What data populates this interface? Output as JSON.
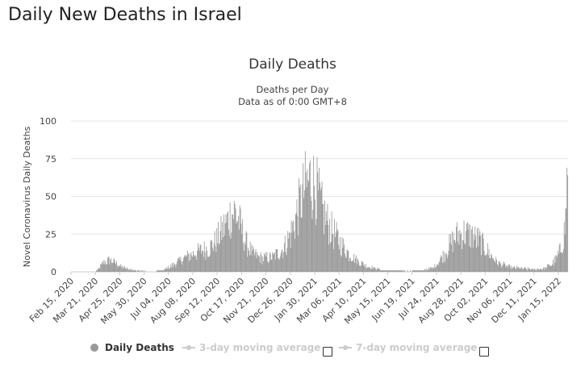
{
  "page": {
    "heading": "Daily New Deaths in Israel"
  },
  "chart_data": {
    "type": "bar",
    "title": "Daily Deaths",
    "subtitle_lines": [
      "Deaths per Day",
      "Data as of 0:00 GMT+8"
    ],
    "ylabel": "Novel Coronavirus Daily Deaths",
    "ylim": [
      0,
      100
    ],
    "yticks": [
      0,
      25,
      50,
      75,
      100
    ],
    "x_range": [
      "2020-02-15",
      "2022-01-28"
    ],
    "x_tick_labels": [
      "Feb 15, 2020",
      "Mar 21, 2020",
      "Apr 25, 2020",
      "May 30, 2020",
      "Jul 04, 2020",
      "Aug 08, 2020",
      "Sep 12, 2020",
      "Oct 17, 2020",
      "Nov 21, 2020",
      "Dec 26, 2020",
      "Jan 30, 2021",
      "Mar 06, 2021",
      "Apr 10, 2021",
      "May 15, 2021",
      "Jun 19, 2021",
      "Jul 24, 2021",
      "Aug 28, 2021",
      "Oct 02, 2021",
      "Nov 06, 2021",
      "Dec 11, 2021",
      "Jan 15, 2022"
    ],
    "grid": true,
    "bar_color": "#999999",
    "series": [
      {
        "name": "Daily Deaths",
        "daily_profile": [
          {
            "date": "2020-02-15",
            "value": 0
          },
          {
            "date": "2020-03-20",
            "value": 0
          },
          {
            "date": "2020-03-25",
            "value": 2
          },
          {
            "date": "2020-04-01",
            "value": 6
          },
          {
            "date": "2020-04-10",
            "value": 8
          },
          {
            "date": "2020-04-18",
            "value": 6
          },
          {
            "date": "2020-04-25",
            "value": 4
          },
          {
            "date": "2020-05-05",
            "value": 2
          },
          {
            "date": "2020-05-15",
            "value": 1
          },
          {
            "date": "2020-06-10",
            "value": 0
          },
          {
            "date": "2020-06-25",
            "value": 1
          },
          {
            "date": "2020-07-05",
            "value": 3
          },
          {
            "date": "2020-07-15",
            "value": 6
          },
          {
            "date": "2020-07-25",
            "value": 9
          },
          {
            "date": "2020-08-08",
            "value": 12
          },
          {
            "date": "2020-08-20",
            "value": 14
          },
          {
            "date": "2020-09-01",
            "value": 16
          },
          {
            "date": "2020-09-12",
            "value": 22
          },
          {
            "date": "2020-09-22",
            "value": 30
          },
          {
            "date": "2020-10-01",
            "value": 38
          },
          {
            "date": "2020-10-07",
            "value": 40
          },
          {
            "date": "2020-10-14",
            "value": 32
          },
          {
            "date": "2020-10-22",
            "value": 20
          },
          {
            "date": "2020-11-01",
            "value": 12
          },
          {
            "date": "2020-11-15",
            "value": 9
          },
          {
            "date": "2020-12-01",
            "value": 10
          },
          {
            "date": "2020-12-15",
            "value": 15
          },
          {
            "date": "2020-12-26",
            "value": 25
          },
          {
            "date": "2021-01-05",
            "value": 40
          },
          {
            "date": "2021-01-15",
            "value": 55
          },
          {
            "date": "2021-01-23",
            "value": 62
          },
          {
            "date": "2021-02-01",
            "value": 55
          },
          {
            "date": "2021-02-10",
            "value": 40
          },
          {
            "date": "2021-02-20",
            "value": 30
          },
          {
            "date": "2021-03-06",
            "value": 20
          },
          {
            "date": "2021-03-20",
            "value": 12
          },
          {
            "date": "2021-04-05",
            "value": 6
          },
          {
            "date": "2021-04-20",
            "value": 3
          },
          {
            "date": "2021-05-10",
            "value": 1
          },
          {
            "date": "2021-06-10",
            "value": 0.5
          },
          {
            "date": "2021-07-05",
            "value": 1
          },
          {
            "date": "2021-07-20",
            "value": 3
          },
          {
            "date": "2021-08-01",
            "value": 10
          },
          {
            "date": "2021-08-12",
            "value": 18
          },
          {
            "date": "2021-08-22",
            "value": 24
          },
          {
            "date": "2021-09-01",
            "value": 26
          },
          {
            "date": "2021-09-12",
            "value": 24
          },
          {
            "date": "2021-09-25",
            "value": 20
          },
          {
            "date": "2021-10-08",
            "value": 12
          },
          {
            "date": "2021-10-20",
            "value": 6
          },
          {
            "date": "2021-11-06",
            "value": 3
          },
          {
            "date": "2021-11-25",
            "value": 2
          },
          {
            "date": "2021-12-11",
            "value": 1.5
          },
          {
            "date": "2021-12-25",
            "value": 2
          },
          {
            "date": "2022-01-05",
            "value": 5
          },
          {
            "date": "2022-01-12",
            "value": 9
          },
          {
            "date": "2022-01-18",
            "value": 15
          },
          {
            "date": "2022-01-22",
            "value": 22
          },
          {
            "date": "2022-01-25",
            "value": 35
          },
          {
            "date": "2022-01-27",
            "value": 60
          },
          {
            "date": "2022-01-28",
            "value": 80
          }
        ]
      }
    ],
    "legend": [
      {
        "label": "Daily Deaths",
        "state": "active",
        "color": "#999999"
      },
      {
        "label": "3-day moving average",
        "state": "inactive",
        "color": "#cccccc"
      },
      {
        "label": "7-day moving average",
        "state": "inactive",
        "color": "#cccccc"
      }
    ]
  }
}
